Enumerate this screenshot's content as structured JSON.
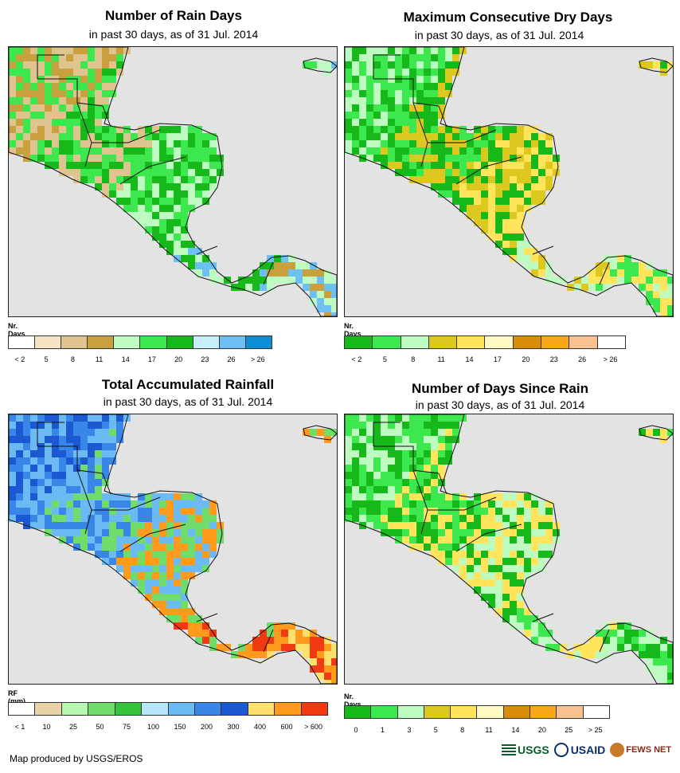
{
  "panels": [
    {
      "id": "rain-days",
      "title": "Number of Rain Days",
      "subtitle": "in past 30 days, as of 31 Jul. 2014",
      "legend_title": "Nr. Days",
      "legend_colors": [
        "#ffffff",
        "#f5e4c4",
        "#dfc48f",
        "#c9a03e",
        "#bdfbc1",
        "#3de84e",
        "#16b81a",
        "#c4effb",
        "#6cc0f4",
        "#0d8ed6"
      ],
      "legend_labels": [
        "< 2",
        "5",
        "8",
        "11",
        "14",
        "17",
        "20",
        "23",
        "26",
        "> 26"
      ],
      "dominant_colors": [
        "#c9a03e",
        "#dfc48f",
        "#3de84e",
        "#16b81a",
        "#bdfbc1",
        "#6cc0f4"
      ]
    },
    {
      "id": "dry-days",
      "title": "Maximum Consecutive Dry Days",
      "subtitle": "in past 30 days, as of 31 Jul. 2014",
      "legend_title": "Nr. Days",
      "legend_colors": [
        "#16b81a",
        "#3de84e",
        "#bdfbc1",
        "#dcc81e",
        "#ffe45c",
        "#fff9c2",
        "#d98c08",
        "#f7a81a",
        "#f9c190",
        "#ffffff"
      ],
      "legend_labels": [
        "< 2",
        "5",
        "8",
        "11",
        "14",
        "17",
        "20",
        "23",
        "26",
        "> 26"
      ],
      "dominant_colors": [
        "#bdfbc1",
        "#3de84e",
        "#16b81a",
        "#dcc81e",
        "#ffe45c"
      ]
    },
    {
      "id": "rainfall",
      "title": "Total Accumulated Rainfall",
      "subtitle": "in past 30 days, as of 31 Jul. 2014",
      "legend_title": "RF (mm)",
      "legend_colors": [
        "#ffffff",
        "#ead2a8",
        "#b9f8b3",
        "#70dc6a",
        "#36c43a",
        "#b8e5fb",
        "#6bbaf3",
        "#3786e8",
        "#1c58d2",
        "#ffe06a",
        "#ff9a1c",
        "#f23a12"
      ],
      "legend_labels": [
        "< 1",
        "10",
        "25",
        "50",
        "75",
        "100",
        "150",
        "200",
        "300",
        "400",
        "600",
        "> 600"
      ],
      "dominant_colors": [
        "#1c58d2",
        "#3786e8",
        "#6bbaf3",
        "#70dc6a",
        "#ff9a1c",
        "#f23a12",
        "#ffe06a"
      ]
    },
    {
      "id": "since-rain",
      "title": "Number of Days Since Rain",
      "subtitle": "in past 30 days, as of 31 Jul. 2014",
      "legend_title": "Nr. Days",
      "legend_colors": [
        "#16b81a",
        "#3de84e",
        "#bdfbc1",
        "#dcc81e",
        "#ffe45c",
        "#fff9c2",
        "#d98c08",
        "#f7a81a",
        "#f9c190",
        "#ffffff"
      ],
      "legend_labels": [
        "0",
        "1",
        "3",
        "5",
        "8",
        "11",
        "14",
        "20",
        "25",
        "> 25"
      ],
      "dominant_colors": [
        "#bdfbc1",
        "#3de84e",
        "#16b81a",
        "#ffe45c"
      ]
    }
  ],
  "footer": "Map produced by USGS/EROS",
  "logos": {
    "usgs": "USGS",
    "usaid": "USAID",
    "fews": "FEWS NET"
  },
  "map_colors": {
    "ocean": "#e3e3e3",
    "border": "#111111"
  }
}
